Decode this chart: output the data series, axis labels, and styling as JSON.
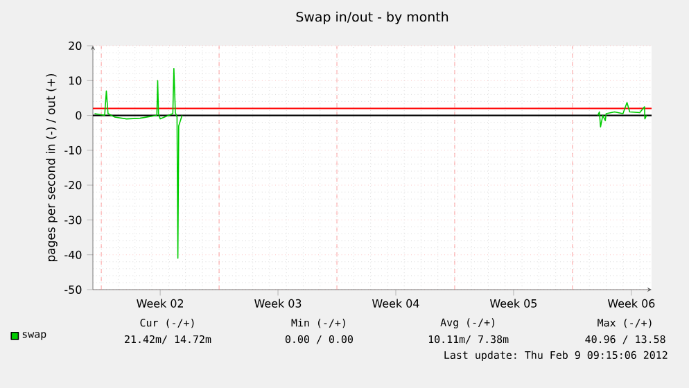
{
  "chart_data": {
    "type": "line",
    "title": "Swap in/out - by month",
    "ylabel": "pages per second in (-) / out (+)",
    "xlim": [
      "2012-01-08T12:00",
      "2012-02-10T16:48"
    ],
    "ylim": [
      -50,
      20
    ],
    "xticks": [
      {
        "value": "2012-01-09T00:00",
        "label": null
      },
      {
        "value": "2012-01-12T12:00",
        "label": "Week 02"
      },
      {
        "value": "2012-01-16T00:00",
        "label": null
      },
      {
        "value": "2012-01-19T12:00",
        "label": "Week 03"
      },
      {
        "value": "2012-01-23T00:00",
        "label": null
      },
      {
        "value": "2012-01-26T12:00",
        "label": "Week 04"
      },
      {
        "value": "2012-01-30T00:00",
        "label": null
      },
      {
        "value": "2012-02-02T12:00",
        "label": "Week 05"
      },
      {
        "value": "2012-02-06T00:00",
        "label": null
      },
      {
        "value": "2012-02-09T12:00",
        "label": "Week 06"
      }
    ],
    "yticks": [
      -50,
      -40,
      -30,
      -20,
      -10,
      0,
      10,
      20
    ],
    "series": [
      {
        "name": "swap",
        "color": "#00cc00",
        "x": [
          "2012-01-08T14:24",
          "2012-01-09T04:48",
          "2012-01-09T07:12",
          "2012-01-09T09:36",
          "2012-01-09T19:12",
          "2012-01-10T12:00",
          "2012-01-11T07:12",
          "2012-01-12T07:12",
          "2012-01-12T08:24",
          "2012-01-12T09:36",
          "2012-01-12T12:00",
          "2012-01-13T06:00",
          "2012-01-13T07:30",
          "2012-01-13T09:36",
          "2012-01-13T12:00",
          "2012-01-13T13:12",
          "2012-01-13T14:24",
          "2012-01-13T19:12",
          "2012-01-21T00:00",
          "2012-02-07T12:00",
          "2012-02-07T14:24",
          "2012-02-07T16:00",
          "2012-02-07T19:12",
          "2012-02-07T22:48",
          "2012-02-08T00:00",
          "2012-02-08T12:00",
          "2012-02-09T00:00",
          "2012-02-09T05:45",
          "2012-02-09T09:36",
          "2012-02-10T00:00",
          "2012-02-10T06:45",
          "2012-02-10T07:12",
          "2012-02-10T09:36"
        ],
        "values": [
          0.5,
          0,
          7,
          0.5,
          -0.5,
          -1,
          -0.8,
          0,
          10,
          0.5,
          -1,
          0.5,
          13.5,
          0.8,
          -0.5,
          -41,
          -3,
          0,
          null,
          0,
          1,
          -3.3,
          0,
          -1.5,
          0.5,
          1,
          0.5,
          3.7,
          1,
          0.8,
          2.5,
          -1,
          0
        ]
      }
    ],
    "ref_lines": [
      {
        "axis": "y",
        "value": 2,
        "color": "#ff0000"
      },
      {
        "axis": "y",
        "value": 0,
        "color": "#000000"
      }
    ],
    "grid": true,
    "legend": "bottom left",
    "annotations": [
      "Cur (-/+)",
      "Min (-/+)",
      "Avg (-/+)",
      "Max (-/+)",
      "21.42m/ 14.72m",
      "0.00 /   0.00",
      "10.11m/   7.38m",
      "40.96 / 13.58",
      "Last update:  Thu Feb  9 09:15:06 2012"
    ]
  }
}
